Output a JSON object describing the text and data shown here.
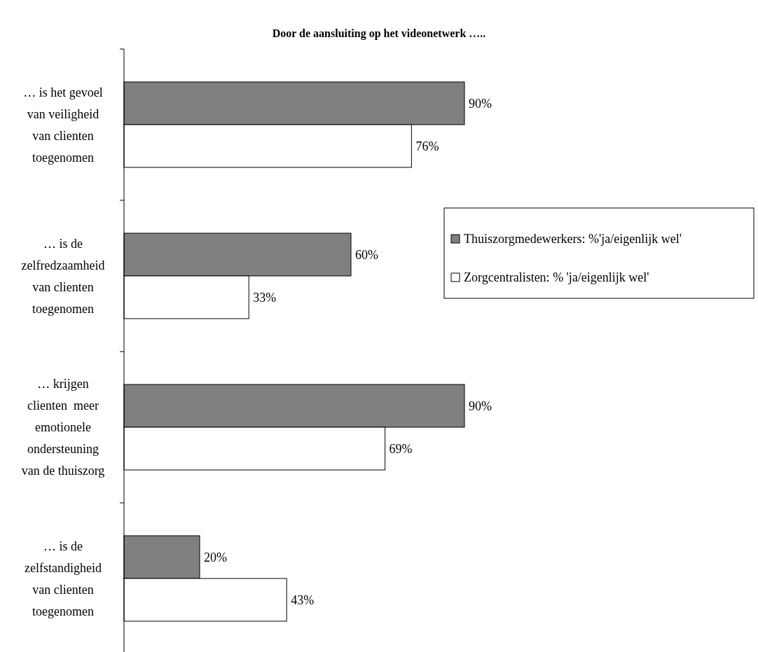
{
  "chart_data": {
    "type": "bar",
    "orientation": "horizontal",
    "title": "Door de aansluiting op het videonetwerk …..",
    "categories": [
      "… is het gevoel\nvan veiligheid\nvan clienten\ntoegenomen",
      "… is de\nzelfredzaamheid\nvan clienten\ntoegenomen",
      "… krijgen\nclienten  meer\nemotionele\nondersteuning\nvan de thuiszorg",
      "… is de\nzelfstandigheid\nvan clienten\ntoegenomen"
    ],
    "series": [
      {
        "name": "Thuiszorgmedewerkers: %'ja/eigenlijk wel'",
        "color": "#808080",
        "values": [
          90,
          60,
          90,
          20
        ],
        "value_labels": [
          "90%",
          "60%",
          "90%",
          "20%"
        ]
      },
      {
        "name": "Zorgcentralisten: % 'ja/eigenlijk wel'",
        "color": "#ffffff",
        "values": [
          76,
          33,
          69,
          43
        ],
        "value_labels": [
          "76%",
          "33%",
          "69%",
          "43%"
        ]
      }
    ],
    "legend": "right"
  }
}
